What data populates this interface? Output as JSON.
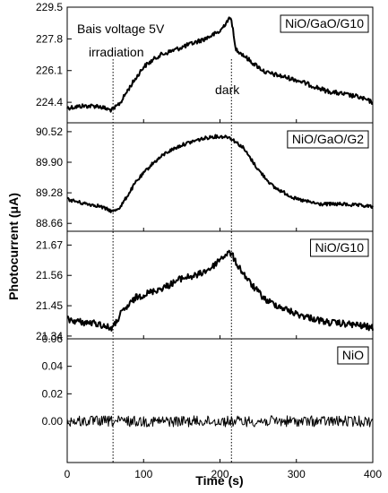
{
  "chart_data": {
    "type": "line",
    "xlabel": "Time (s)",
    "ylabel": "Photocurrent (μA)",
    "xlim": [
      0,
      400
    ],
    "xticks": [
      "0",
      "100",
      "200",
      "300",
      "400"
    ],
    "annotations": {
      "bias": "Bais voltage 5V",
      "irradiation": "irradiation",
      "dark": "dark",
      "irradiation_time": 60,
      "dark_time": 215
    },
    "panels": [
      {
        "label": "NiO/GaO/G10",
        "ylim": [
          223.3,
          229.5
        ],
        "yticks": [
          "224.4",
          "226.1",
          "227.8",
          "229.5"
        ],
        "ytick_values": [
          224.4,
          226.1,
          227.8,
          229.5
        ],
        "line_width": 2,
        "noise": 0.12,
        "x": [
          0,
          20,
          40,
          55,
          60,
          70,
          80,
          100,
          120,
          140,
          160,
          180,
          200,
          210,
          215,
          220,
          240,
          260,
          300,
          340,
          380,
          400
        ],
        "values": [
          224.1,
          224.2,
          224.2,
          224.0,
          224.0,
          224.4,
          225.1,
          226.3,
          226.9,
          227.2,
          227.5,
          227.8,
          228.2,
          228.8,
          228.9,
          227.3,
          226.6,
          226.0,
          225.6,
          225.0,
          224.7,
          224.4
        ]
      },
      {
        "label": "NiO/GaO/G2",
        "ylim": [
          88.5,
          90.7
        ],
        "yticks": [
          "88.66",
          "89.28",
          "89.90",
          "90.52"
        ],
        "ytick_values": [
          88.66,
          89.28,
          89.9,
          90.52
        ],
        "line_width": 2,
        "noise": 0.035,
        "x": [
          0,
          20,
          40,
          60,
          70,
          90,
          110,
          130,
          150,
          170,
          190,
          210,
          215,
          230,
          250,
          270,
          300,
          330,
          360,
          400
        ],
        "values": [
          89.15,
          89.07,
          89.02,
          88.9,
          89.0,
          89.5,
          89.85,
          90.1,
          90.25,
          90.35,
          90.42,
          90.42,
          90.38,
          90.2,
          89.75,
          89.4,
          89.15,
          89.05,
          89.05,
          89.0
        ]
      },
      {
        "label": "NiO/G10",
        "ylim": [
          21.33,
          21.72
        ],
        "yticks": [
          "21.34",
          "21.45",
          "21.56",
          "21.67"
        ],
        "ytick_values": [
          21.34,
          21.45,
          21.56,
          21.67
        ],
        "line_width": 2,
        "noise": 0.012,
        "x": [
          0,
          20,
          40,
          55,
          60,
          70,
          90,
          110,
          130,
          150,
          170,
          190,
          200,
          210,
          215,
          220,
          230,
          240,
          260,
          300,
          340,
          380,
          400
        ],
        "values": [
          21.4,
          21.39,
          21.385,
          21.37,
          21.37,
          21.42,
          21.48,
          21.5,
          21.52,
          21.55,
          21.56,
          21.59,
          21.62,
          21.64,
          21.64,
          21.61,
          21.57,
          21.53,
          21.47,
          21.42,
          21.39,
          21.38,
          21.37
        ]
      },
      {
        "label": "NiO",
        "ylim": [
          -0.03,
          0.06
        ],
        "yticks": [
          "0.00",
          "0.02",
          "0.04",
          "0.06"
        ],
        "ytick_values": [
          0,
          0.02,
          0.04,
          0.06
        ],
        "line_width": 1,
        "noise": 0.004,
        "x": [
          0,
          400
        ],
        "values": [
          0.0,
          0.0
        ]
      }
    ]
  }
}
